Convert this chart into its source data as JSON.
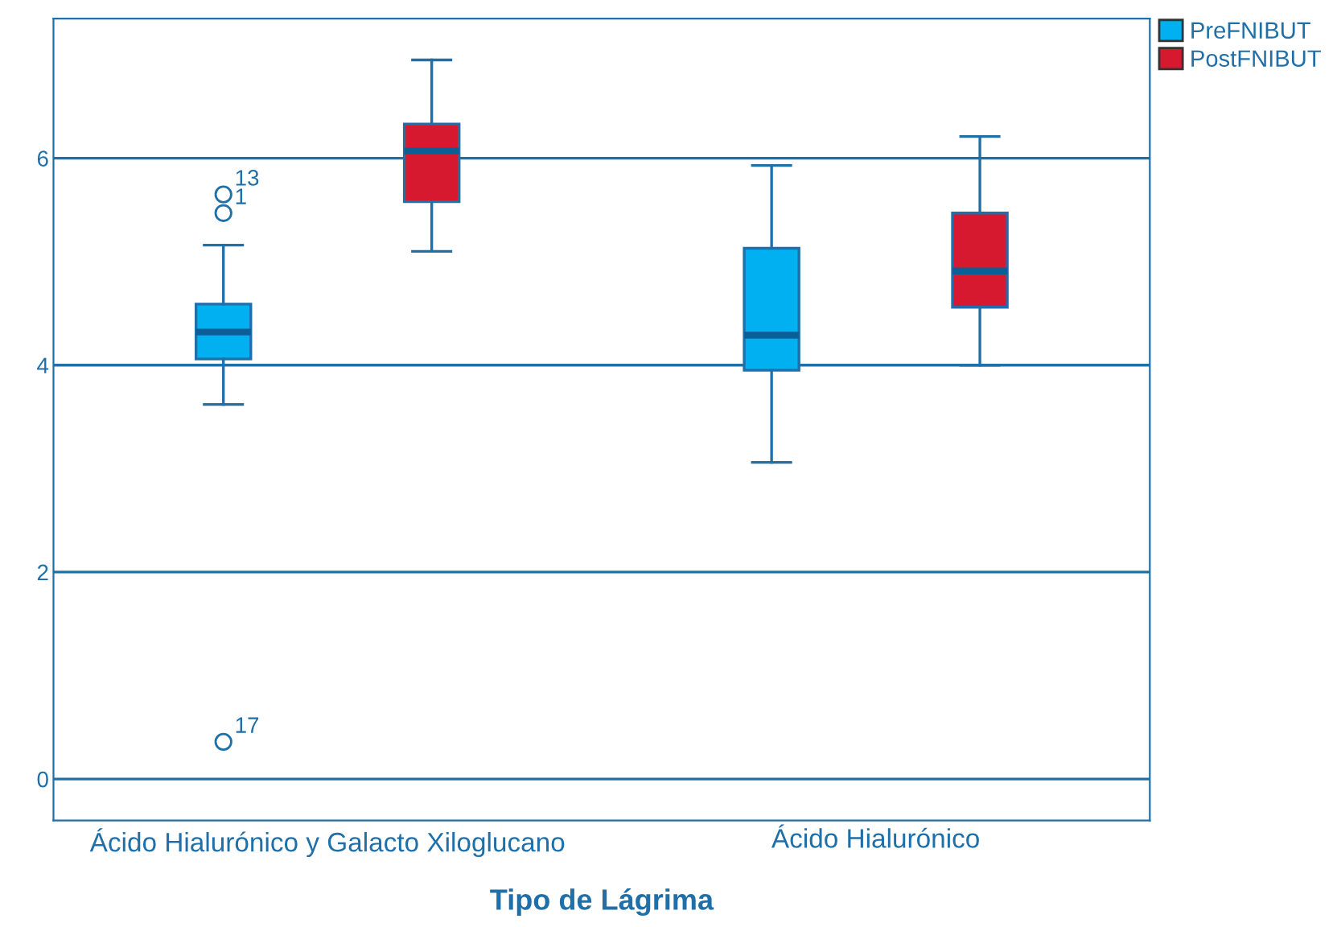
{
  "chart_data": {
    "type": "box",
    "xlabel": "Tipo de Lágrima",
    "categories": [
      "Ácido Hialurónico y Galacto Xiloglucano",
      "Ácido Hialurónico"
    ],
    "series": [
      {
        "name": "PreFNIBUT",
        "color": "#00b0f0",
        "boxes": [
          {
            "low": 3.62,
            "q1": 4.06,
            "median": 4.32,
            "q3": 4.59,
            "high": 5.16,
            "outliers": [
              5.47,
              5.65,
              0.36
            ]
          },
          {
            "low": 3.06,
            "q1": 3.95,
            "median": 4.29,
            "q3": 5.13,
            "high": 5.93
          }
        ]
      },
      {
        "name": "PostFNIBUT",
        "color": "#d7192f",
        "boxes": [
          {
            "low": 5.1,
            "q1": 5.58,
            "median": 6.07,
            "q3": 6.33,
            "high": 6.95
          },
          {
            "low": 4.0,
            "q1": 4.56,
            "median": 4.91,
            "q3": 5.47,
            "high": 6.21
          }
        ]
      }
    ],
    "ylim": [
      -0.4,
      7.35
    ],
    "yticks": [
      0,
      2,
      4,
      6
    ],
    "grid": "y",
    "legend": "top right",
    "annotations": [
      "1",
      "13",
      "17"
    ]
  }
}
